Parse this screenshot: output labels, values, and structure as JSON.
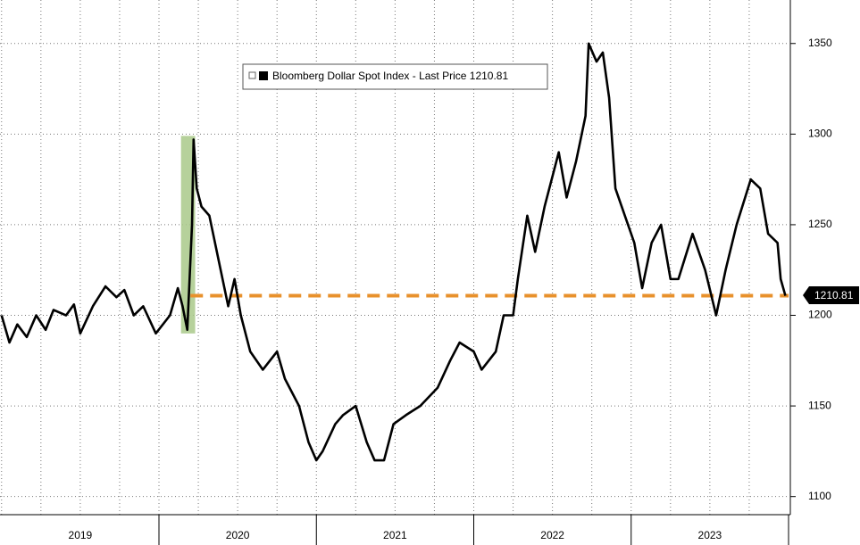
{
  "chart_data": {
    "type": "line",
    "x": [
      2019.0,
      2019.05,
      2019.1,
      2019.16,
      2019.22,
      2019.28,
      2019.33,
      2019.41,
      2019.46,
      2019.5,
      2019.58,
      2019.66,
      2019.73,
      2019.78,
      2019.84,
      2019.9,
      2019.98,
      2020.07,
      2020.12,
      2020.15,
      2020.18,
      2020.21,
      2020.22,
      2020.24,
      2020.27,
      2020.32,
      2020.38,
      2020.44,
      2020.48,
      2020.52,
      2020.58,
      2020.66,
      2020.75,
      2020.8,
      2020.89,
      2020.95,
      2021.0,
      2021.04,
      2021.12,
      2021.17,
      2021.25,
      2021.32,
      2021.37,
      2021.43,
      2021.49,
      2021.57,
      2021.66,
      2021.77,
      2021.85,
      2021.91,
      2022.0,
      2022.05,
      2022.14,
      2022.19,
      2022.25,
      2022.28,
      2022.34,
      2022.39,
      2022.45,
      2022.54,
      2022.59,
      2022.65,
      2022.71,
      2022.73,
      2022.78,
      2022.82,
      2022.86,
      2022.9,
      2022.96,
      2023.02,
      2023.07,
      2023.13,
      2023.19,
      2023.25,
      2023.3,
      2023.39,
      2023.47,
      2023.54,
      2023.6,
      2023.67,
      2023.76,
      2023.82,
      2023.87,
      2023.93,
      2023.95,
      2023.98
    ],
    "series": [
      {
        "name": "Bloomberg Dollar Spot Index - Last Price",
        "color": "#000000",
        "values": [
          1200,
          1185,
          1195,
          1188,
          1200,
          1192,
          1203,
          1200,
          1206,
          1190,
          1205,
          1216,
          1210,
          1214,
          1200,
          1205,
          1190,
          1200,
          1215,
          1205,
          1192,
          1250,
          1297,
          1270,
          1260,
          1255,
          1230,
          1205,
          1220,
          1200,
          1180,
          1170,
          1180,
          1165,
          1150,
          1130,
          1120,
          1125,
          1140,
          1145,
          1150,
          1130,
          1120,
          1120,
          1140,
          1145,
          1150,
          1160,
          1175,
          1185,
          1180,
          1170,
          1180,
          1200,
          1200,
          1220,
          1255,
          1235,
          1260,
          1290,
          1265,
          1285,
          1310,
          1350,
          1340,
          1345,
          1320,
          1270,
          1255,
          1240,
          1215,
          1240,
          1250,
          1220,
          1220,
          1245,
          1225,
          1200,
          1225,
          1250,
          1275,
          1270,
          1245,
          1240,
          1220,
          1210.81
        ]
      }
    ],
    "xlim": [
      2018.99,
      2024.0
    ],
    "xticks": [
      {
        "value": 2019.5,
        "label": "2019"
      },
      {
        "value": 2020.5,
        "label": "2020"
      },
      {
        "value": 2021.5,
        "label": "2021"
      },
      {
        "value": 2022.5,
        "label": "2022"
      },
      {
        "value": 2023.5,
        "label": "2023"
      }
    ],
    "ylim": [
      1090,
      1374
    ],
    "yticks": [
      1100,
      1150,
      1200,
      1250,
      1300,
      1350
    ],
    "grid": true,
    "reference_line": {
      "value": 1210.81,
      "from": 2020.2,
      "color": "#e8912c"
    },
    "highlight": {
      "x": [
        2020.14,
        2020.23
      ],
      "y": [
        1190,
        1299
      ],
      "color": "#a9c98a"
    }
  }
}
